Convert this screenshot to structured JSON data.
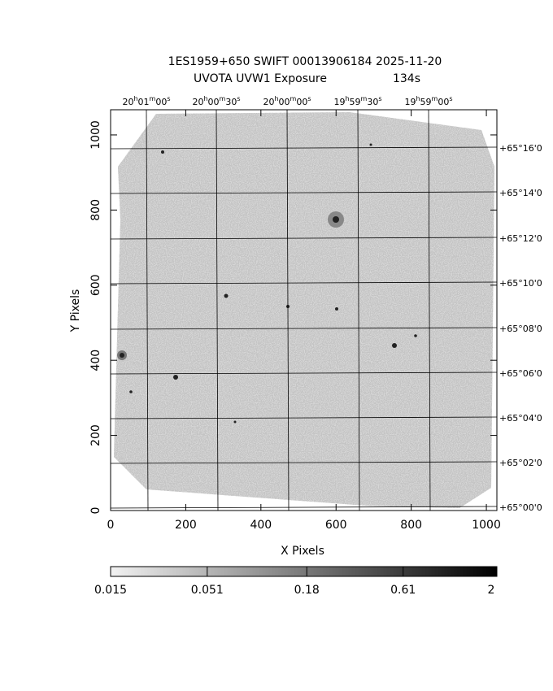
{
  "chart_data": {
    "type": "image",
    "title": "1ES1959+650 SWIFT 00013906184 2025-11-20",
    "subtitle": "UVOTA UVW1 Exposure",
    "exposure": "134s",
    "xlabel": "X Pixels",
    "ylabel": "Y Pixels",
    "xlim": [
      0,
      1028
    ],
    "ylim": [
      0,
      1067
    ],
    "xticks": [
      0,
      200,
      400,
      600,
      800,
      1000
    ],
    "yticks": [
      0,
      200,
      400,
      600,
      800,
      1000
    ],
    "ra_labels": [
      "20h01m00s",
      "20h00m30s",
      "20h00m00s",
      "19h59m30s",
      "19h59m00s"
    ],
    "dec_labels": [
      "+65°16'0",
      "+65°14'0",
      "+65°12'0",
      "+65°10'0",
      "+65°08'0",
      "+65°06'0",
      "+65°04'0",
      "+65°02'0",
      "+65°00'0"
    ],
    "colorbar": {
      "lim": [
        0.015,
        2
      ],
      "log": true,
      "ticks": [
        0.015,
        0.051,
        0.18,
        0.61,
        2
      ]
    },
    "grid": true
  }
}
